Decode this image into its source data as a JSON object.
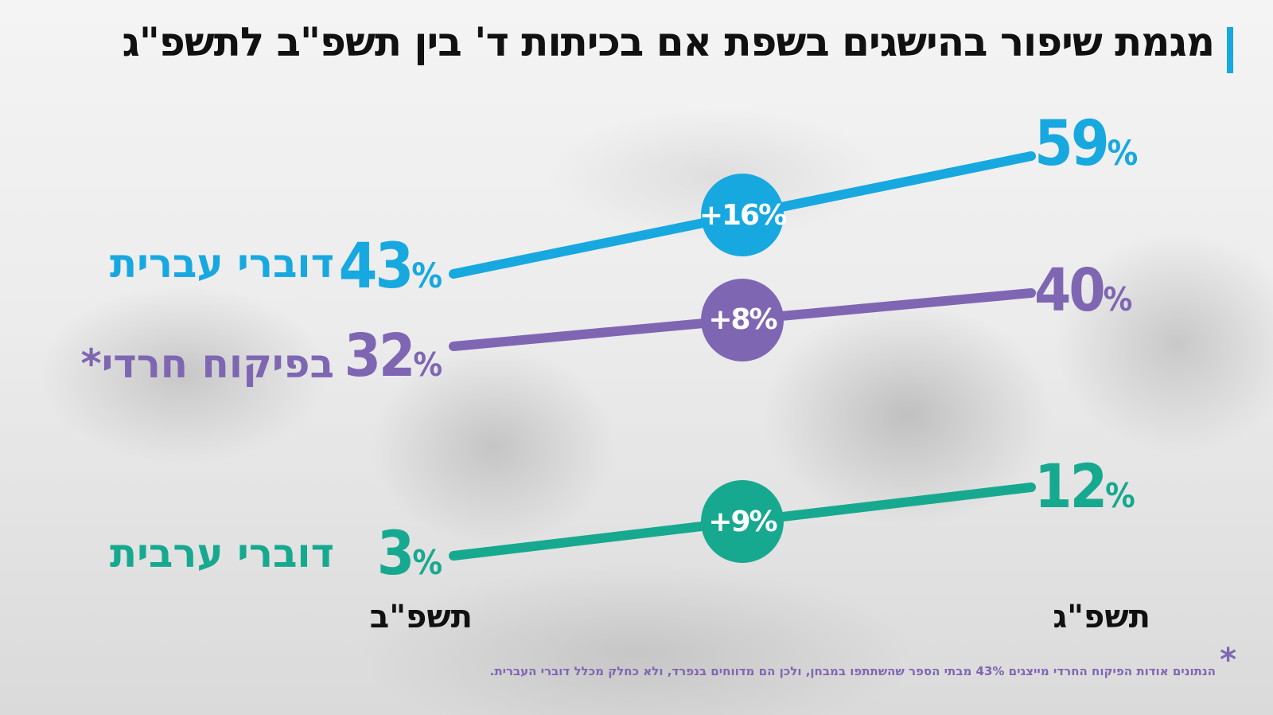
{
  "title": "מגמת שיפור בהישגים בשפת אם בכיתות ד' בין תשפ\"ב לתשפ\"ג",
  "colors": {
    "accent": "#17a8e0",
    "purple": "#7f66b3",
    "teal": "#17a98f",
    "text": "#111111"
  },
  "chart_data": {
    "type": "line",
    "title": "מגמת שיפור בהישגים בשפת אם בכיתות ד' בין תשפ\"ב לתשפ\"ג",
    "categories": [
      "תשפ\"ב",
      "תשפ\"ג"
    ],
    "series": [
      {
        "name": "דוברי עברית",
        "values": [
          43,
          59
        ],
        "labels": [
          "43",
          "59"
        ],
        "change": "+16%",
        "color": "#17a8e0"
      },
      {
        "name": "בפיקוח חרדי*",
        "values": [
          32,
          40
        ],
        "labels": [
          "32",
          "40"
        ],
        "change": "+8%",
        "color": "#7f66b3"
      },
      {
        "name": "דוברי ערבית",
        "values": [
          3,
          12
        ],
        "labels": [
          "3",
          "12"
        ],
        "change": "+9%",
        "color": "#17a98f"
      }
    ],
    "unit": "%",
    "grid": false,
    "legend": "left"
  },
  "footnote": {
    "star": "*",
    "text": "הנתונים אודות הפיקוח החרדי מייצגים 43% מבתי הספר שהשתתפו במבחן, ולכן הם מדווחים בנפרד, ולא כחלק מכלל דוברי העברית."
  }
}
